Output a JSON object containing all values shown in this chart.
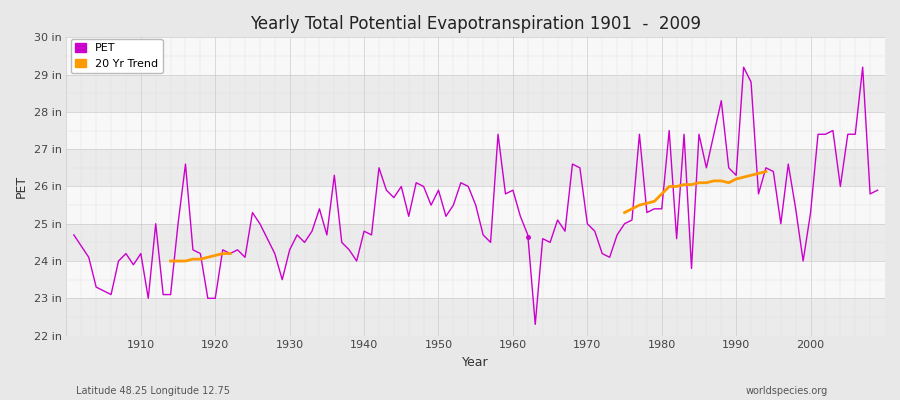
{
  "title": "Yearly Total Potential Evapotranspiration 1901  -  2009",
  "xlabel": "Year",
  "ylabel": "PET",
  "subtitle": "Latitude 48.25 Longitude 12.75",
  "watermark": "worldspecies.org",
  "pet_color": "#cc00cc",
  "trend_color": "#ff9900",
  "background_color": "#e8e8e8",
  "plot_bg_color": "#f5f5f5",
  "band_color_light": "#f0f0f0",
  "band_color_dark": "#e0e0e0",
  "ylim_min": 22,
  "ylim_max": 30,
  "xlim_min": 1900,
  "xlim_max": 2010,
  "years": [
    1901,
    1902,
    1903,
    1904,
    1905,
    1906,
    1907,
    1908,
    1909,
    1910,
    1911,
    1912,
    1913,
    1914,
    1915,
    1916,
    1917,
    1918,
    1919,
    1920,
    1921,
    1922,
    1923,
    1924,
    1925,
    1926,
    1927,
    1928,
    1929,
    1930,
    1931,
    1932,
    1933,
    1934,
    1935,
    1936,
    1937,
    1938,
    1939,
    1940,
    1941,
    1942,
    1943,
    1944,
    1945,
    1946,
    1947,
    1948,
    1949,
    1950,
    1951,
    1952,
    1953,
    1954,
    1955,
    1956,
    1957,
    1958,
    1959,
    1960,
    1961,
    1962,
    1963,
    1964,
    1965,
    1966,
    1967,
    1968,
    1969,
    1970,
    1971,
    1972,
    1973,
    1974,
    1975,
    1976,
    1977,
    1978,
    1979,
    1980,
    1981,
    1982,
    1983,
    1984,
    1985,
    1986,
    1987,
    1988,
    1989,
    1990,
    1991,
    1992,
    1993,
    1994,
    1995,
    1996,
    1997,
    1998,
    1999,
    2000,
    2001,
    2002,
    2003,
    2004,
    2005,
    2006,
    2007,
    2008,
    2009
  ],
  "pet_values": [
    24.7,
    24.4,
    24.1,
    23.3,
    23.2,
    23.1,
    24.0,
    24.2,
    23.9,
    24.2,
    23.0,
    25.0,
    23.1,
    23.1,
    25.0,
    26.6,
    24.3,
    24.2,
    23.0,
    23.0,
    24.3,
    24.2,
    24.3,
    24.1,
    25.3,
    25.0,
    24.6,
    24.2,
    23.5,
    24.3,
    24.7,
    24.5,
    24.8,
    25.4,
    24.7,
    26.3,
    24.5,
    24.3,
    24.0,
    24.8,
    24.7,
    26.5,
    25.9,
    25.7,
    26.0,
    25.2,
    26.1,
    26.0,
    25.5,
    25.9,
    25.2,
    25.5,
    26.1,
    26.0,
    25.5,
    24.7,
    24.5,
    27.4,
    25.8,
    25.9,
    25.2,
    24.7,
    22.3,
    24.6,
    24.5,
    25.1,
    24.8,
    26.6,
    26.5,
    25.0,
    24.8,
    24.2,
    24.1,
    24.7,
    25.0,
    25.1,
    27.4,
    25.3,
    25.4,
    25.4,
    27.5,
    24.6,
    27.4,
    23.8,
    27.4,
    26.5,
    27.4,
    28.3,
    26.5,
    26.3,
    29.2,
    28.8,
    25.8,
    26.5,
    26.4,
    25.0,
    26.6,
    25.4,
    24.0,
    25.3,
    27.4,
    27.4,
    27.5,
    26.0,
    27.4,
    27.4,
    29.2,
    25.8,
    25.9
  ],
  "trend_seg1_years": [
    1914,
    1915,
    1916,
    1917,
    1918,
    1919,
    1920,
    1921,
    1922
  ],
  "trend_seg1_values": [
    24.0,
    24.0,
    24.0,
    24.05,
    24.05,
    24.1,
    24.15,
    24.2,
    24.2
  ],
  "trend_seg2_years": [
    1975,
    1976,
    1977,
    1978,
    1979,
    1980,
    1981,
    1982,
    1983,
    1984,
    1985,
    1986,
    1987,
    1988,
    1989,
    1990,
    1991,
    1992,
    1993,
    1994
  ],
  "trend_seg2_values": [
    25.3,
    25.4,
    25.5,
    25.55,
    25.6,
    25.8,
    26.0,
    26.0,
    26.05,
    26.05,
    26.1,
    26.1,
    26.15,
    26.15,
    26.1,
    26.2,
    26.25,
    26.3,
    26.35,
    26.4
  ],
  "single_point_year": 1962,
  "single_point_value": 24.65
}
